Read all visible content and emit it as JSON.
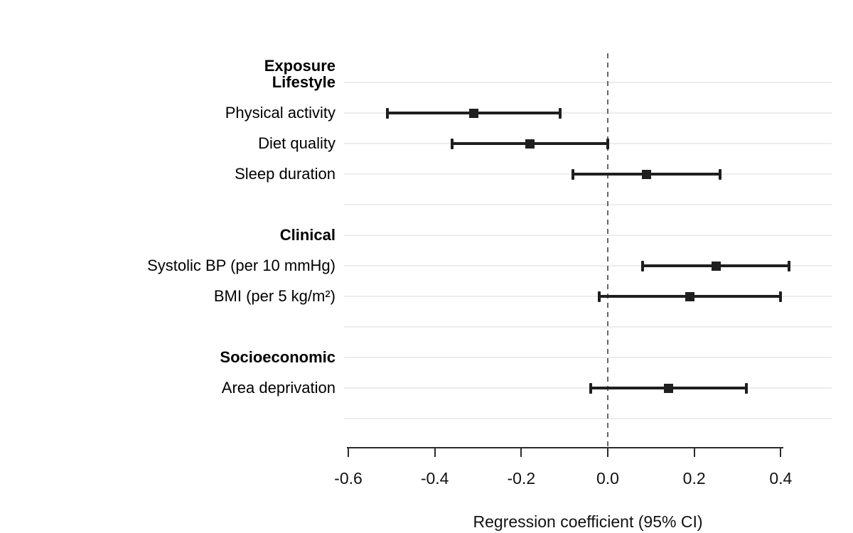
{
  "chart_data": {
    "type": "scatter",
    "subtype": "forest-plot",
    "title": "",
    "xlabel": "Regression coefficient (95% CI)",
    "header_label": "Exposure",
    "xlim": [
      -0.61,
      0.52
    ],
    "x_ticks": [
      {
        "value": -0.6,
        "label": "-0.6"
      },
      {
        "value": -0.4,
        "label": "-0.4"
      },
      {
        "value": -0.2,
        "label": "-0.2"
      },
      {
        "value": 0.0,
        "label": "0.0"
      },
      {
        "value": 0.2,
        "label": "0.2"
      },
      {
        "value": 0.4,
        "label": "0.4"
      }
    ],
    "reference_line_x": 0,
    "grid": "horizontal-rows",
    "legend": "none",
    "groups": [
      {
        "label": "Lifestyle",
        "items": [
          {
            "label": "Physical activity",
            "estimate": -0.31,
            "ci_low": -0.51,
            "ci_high": -0.11
          },
          {
            "label": "Diet quality",
            "estimate": -0.18,
            "ci_low": -0.36,
            "ci_high": 0.0
          },
          {
            "label": "Sleep duration",
            "estimate": 0.09,
            "ci_low": -0.08,
            "ci_high": 0.26
          }
        ]
      },
      {
        "label": "Clinical",
        "items": [
          {
            "label": "Systolic BP (per 10 mmHg)",
            "estimate": 0.25,
            "ci_low": 0.08,
            "ci_high": 0.42
          },
          {
            "label": "BMI (per 5 kg/m²)",
            "estimate": 0.19,
            "ci_low": -0.02,
            "ci_high": 0.4
          }
        ]
      },
      {
        "label": "Socioeconomic",
        "items": [
          {
            "label": "Area deprivation",
            "estimate": 0.14,
            "ci_low": -0.04,
            "ci_high": 0.32
          }
        ]
      }
    ],
    "colors": {
      "marker": "#1f1f1f",
      "ci_line": "#1f1f1f",
      "axis": "#2b2b2b",
      "gridline": "#ececec",
      "reference_line": "#666666",
      "text": "#000000"
    }
  }
}
